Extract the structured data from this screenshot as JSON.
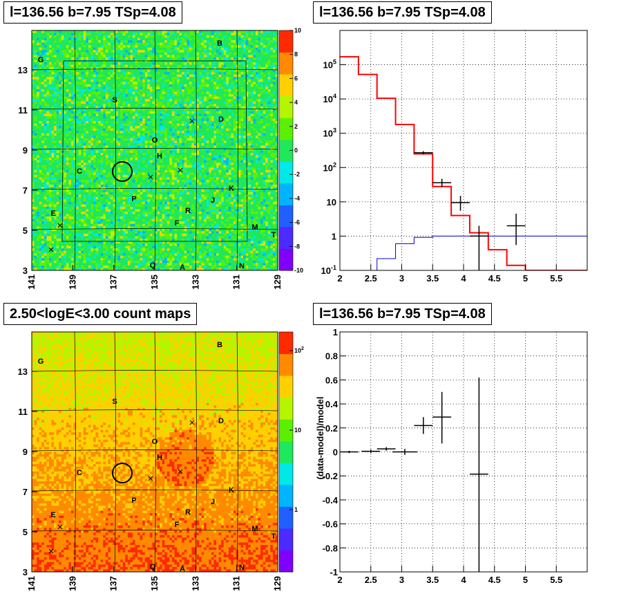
{
  "chart_data": [
    {
      "type": "heatmap",
      "panel": "top-left",
      "title": "l=136.56 b=7.95 TSp=4.08",
      "x_ticks": [
        "141",
        "139",
        "137",
        "135",
        "133",
        "131",
        "129"
      ],
      "y_ticks": [
        "3",
        "5",
        "7",
        "9",
        "11",
        "13"
      ],
      "colorbar_ticks": [
        "10",
        "8",
        "6",
        "4",
        "2",
        "0",
        "-2",
        "-4",
        "-6",
        "-8",
        "-10"
      ],
      "colorbar_range": [
        -10,
        10
      ],
      "colors": [
        "#7f00ff",
        "#4b2bff",
        "#1f60ff",
        "#00b4ff",
        "#00e8e8",
        "#1fe85a",
        "#5cf000",
        "#b5f500",
        "#ffd000",
        "#ff8a00",
        "#ff2a00"
      ],
      "labels": [
        "B",
        "G",
        "S",
        "D",
        "O",
        "H",
        "C",
        "K",
        "P",
        "J",
        "R",
        "E",
        "F",
        "M",
        "T",
        "Q",
        "A",
        "N"
      ]
    },
    {
      "type": "line",
      "panel": "top-right",
      "title": "l=136.56 b=7.95 TSp=4.08",
      "xlim": [
        2,
        6
      ],
      "ylim": [
        0.1,
        1000000
      ],
      "yscale": "log",
      "grid": true,
      "x_ticks": [
        "2",
        "2.5",
        "3",
        "3.5",
        "4",
        "4.5",
        "5",
        "5.5"
      ],
      "y_ticks": [
        "10^-1",
        "1",
        "10",
        "10^2",
        "10^3",
        "10^4",
        "10^5"
      ],
      "series": [
        {
          "style": "step",
          "color": "#ff0000",
          "edges": [
            2.0,
            2.3,
            2.6,
            2.9,
            3.2,
            3.5,
            3.8,
            4.1,
            4.4,
            4.7,
            5.0,
            6.0
          ],
          "values": [
            170000,
            52000,
            10500,
            1800,
            250,
            28,
            4.0,
            1.25,
            0.4,
            0.14,
            0.1
          ]
        },
        {
          "style": "step",
          "color": "#0000cc",
          "edges": [
            2.0,
            2.6,
            2.9,
            3.2,
            3.5,
            6.0
          ],
          "values": [
            0.05,
            0.22,
            0.6,
            0.92,
            1.0
          ]
        },
        {
          "style": "errorbar",
          "color": "#000000",
          "points": [
            {
              "x": 3.35,
              "xerr": 0.15,
              "y": 270,
              "ylo": 240,
              "yhi": 300
            },
            {
              "x": 3.65,
              "xerr": 0.15,
              "y": 36,
              "ylo": 27,
              "yhi": 47
            },
            {
              "x": 3.95,
              "xerr": 0.15,
              "y": 9.5,
              "ylo": 5.5,
              "yhi": 15
            },
            {
              "x": 4.25,
              "xerr": 0.15,
              "y": 1.0,
              "ylo": 0.08,
              "yhi": 2.0
            },
            {
              "x": 4.85,
              "xerr": 0.15,
              "y": 2.0,
              "ylo": 0.55,
              "yhi": 4.5
            }
          ]
        }
      ]
    },
    {
      "type": "heatmap",
      "panel": "bottom-left",
      "title": "2.50<logE<3.00 count maps",
      "x_ticks": [
        "141",
        "139",
        "137",
        "135",
        "133",
        "131",
        "129"
      ],
      "y_ticks": [
        "3",
        "5",
        "7",
        "9",
        "11",
        "13"
      ],
      "colorbar_ticks": [
        "10^2",
        "10",
        "1"
      ],
      "colors": [
        "#7f00ff",
        "#4b2bff",
        "#1f60ff",
        "#00b4ff",
        "#00e8e8",
        "#1fe85a",
        "#5cf000",
        "#b5f500",
        "#ffd000",
        "#ff8a00",
        "#ff2a00"
      ],
      "labels": [
        "B",
        "G",
        "S",
        "D",
        "O",
        "H",
        "C",
        "K",
        "P",
        "J",
        "R",
        "E",
        "F",
        "M",
        "T",
        "Q",
        "A",
        "N"
      ]
    },
    {
      "type": "scatter",
      "panel": "bottom-right",
      "title": "l=136.56 b=7.95 TSp=4.08",
      "ylabel": "(data-model)/model",
      "xlim": [
        2,
        6
      ],
      "ylim": [
        -1,
        1
      ],
      "grid": true,
      "x_ticks": [
        "2",
        "2.5",
        "3",
        "3.5",
        "4",
        "4.5",
        "5",
        "5.5"
      ],
      "y_ticks": [
        "-1",
        "-0.8",
        "-0.6",
        "-0.4",
        "-0.2",
        "0",
        "0.2",
        "0.4",
        "0.6",
        "0.8",
        "1"
      ],
      "points": [
        {
          "x": 2.15,
          "xerr": 0.15,
          "y": 0.0,
          "ylo": -0.01,
          "yhi": 0.01
        },
        {
          "x": 2.5,
          "xerr": 0.15,
          "y": 0.005,
          "ylo": -0.01,
          "yhi": 0.02
        },
        {
          "x": 2.75,
          "xerr": 0.15,
          "y": 0.025,
          "ylo": 0.01,
          "yhi": 0.04
        },
        {
          "x": 3.05,
          "xerr": 0.2,
          "y": 0.0,
          "ylo": -0.025,
          "yhi": 0.025
        },
        {
          "x": 3.35,
          "xerr": 0.15,
          "y": 0.22,
          "ylo": 0.15,
          "yhi": 0.29
        },
        {
          "x": 3.65,
          "xerr": 0.15,
          "y": 0.29,
          "ylo": 0.07,
          "yhi": 0.5
        },
        {
          "x": 4.25,
          "xerr": 0.15,
          "y": -0.185,
          "ylo": -1.0,
          "yhi": 0.62
        }
      ]
    }
  ]
}
